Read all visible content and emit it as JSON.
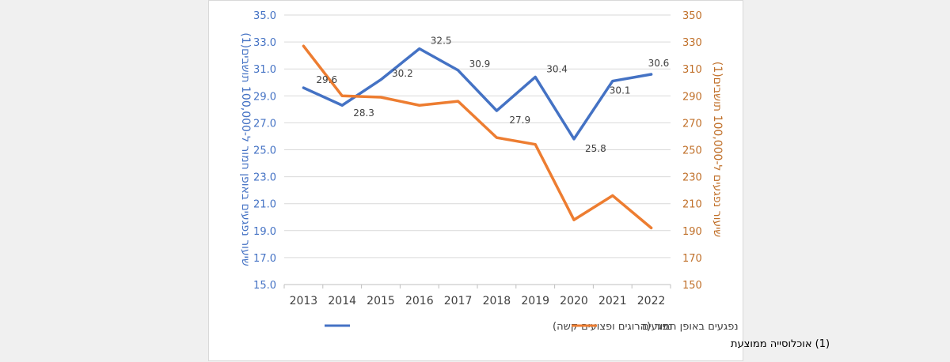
{
  "chart_data": {
    "type": "line",
    "categories": [
      "2013",
      "2014",
      "2015",
      "2016",
      "2017",
      "2018",
      "2019",
      "2020",
      "2021",
      "2022"
    ],
    "series": [
      {
        "name": "נפגעים באופן חמור (הרוגים ופצועים קשה)",
        "axis": "left",
        "color": "#4472c4",
        "values": [
          29.6,
          28.3,
          30.2,
          32.5,
          30.9,
          27.9,
          30.4,
          25.8,
          30.1,
          30.6
        ],
        "data_labels": [
          "29.6",
          "28.3",
          "30.2",
          "32.5",
          "30.9",
          "27.9",
          "30.4",
          "25.8",
          "30.1",
          "30.6"
        ]
      },
      {
        "name": "נפגעים",
        "axis": "right",
        "color": "#ed7d31",
        "values": [
          327,
          290,
          289,
          283,
          286,
          259,
          254,
          198,
          216,
          192
        ]
      }
    ],
    "y_left": {
      "label": "שיעור נפגעים באופן חמור ל-100,000 תושבים(1)",
      "ylim": [
        15,
        35
      ],
      "ticks": [
        "15.0",
        "17.0",
        "19.0",
        "21.0",
        "23.0",
        "25.0",
        "27.0",
        "29.0",
        "31.0",
        "33.0",
        "35.0"
      ]
    },
    "y_right": {
      "label": "שיעור נפגעים ל-100,000 תושבים(1)",
      "ylim": [
        150,
        350
      ],
      "ticks": [
        "150",
        "170",
        "190",
        "210",
        "230",
        "250",
        "270",
        "290",
        "310",
        "330",
        "350"
      ]
    },
    "grid": true,
    "legend_position": "bottom"
  },
  "footnote": "(1) אוכלוסייה ממוצעת"
}
